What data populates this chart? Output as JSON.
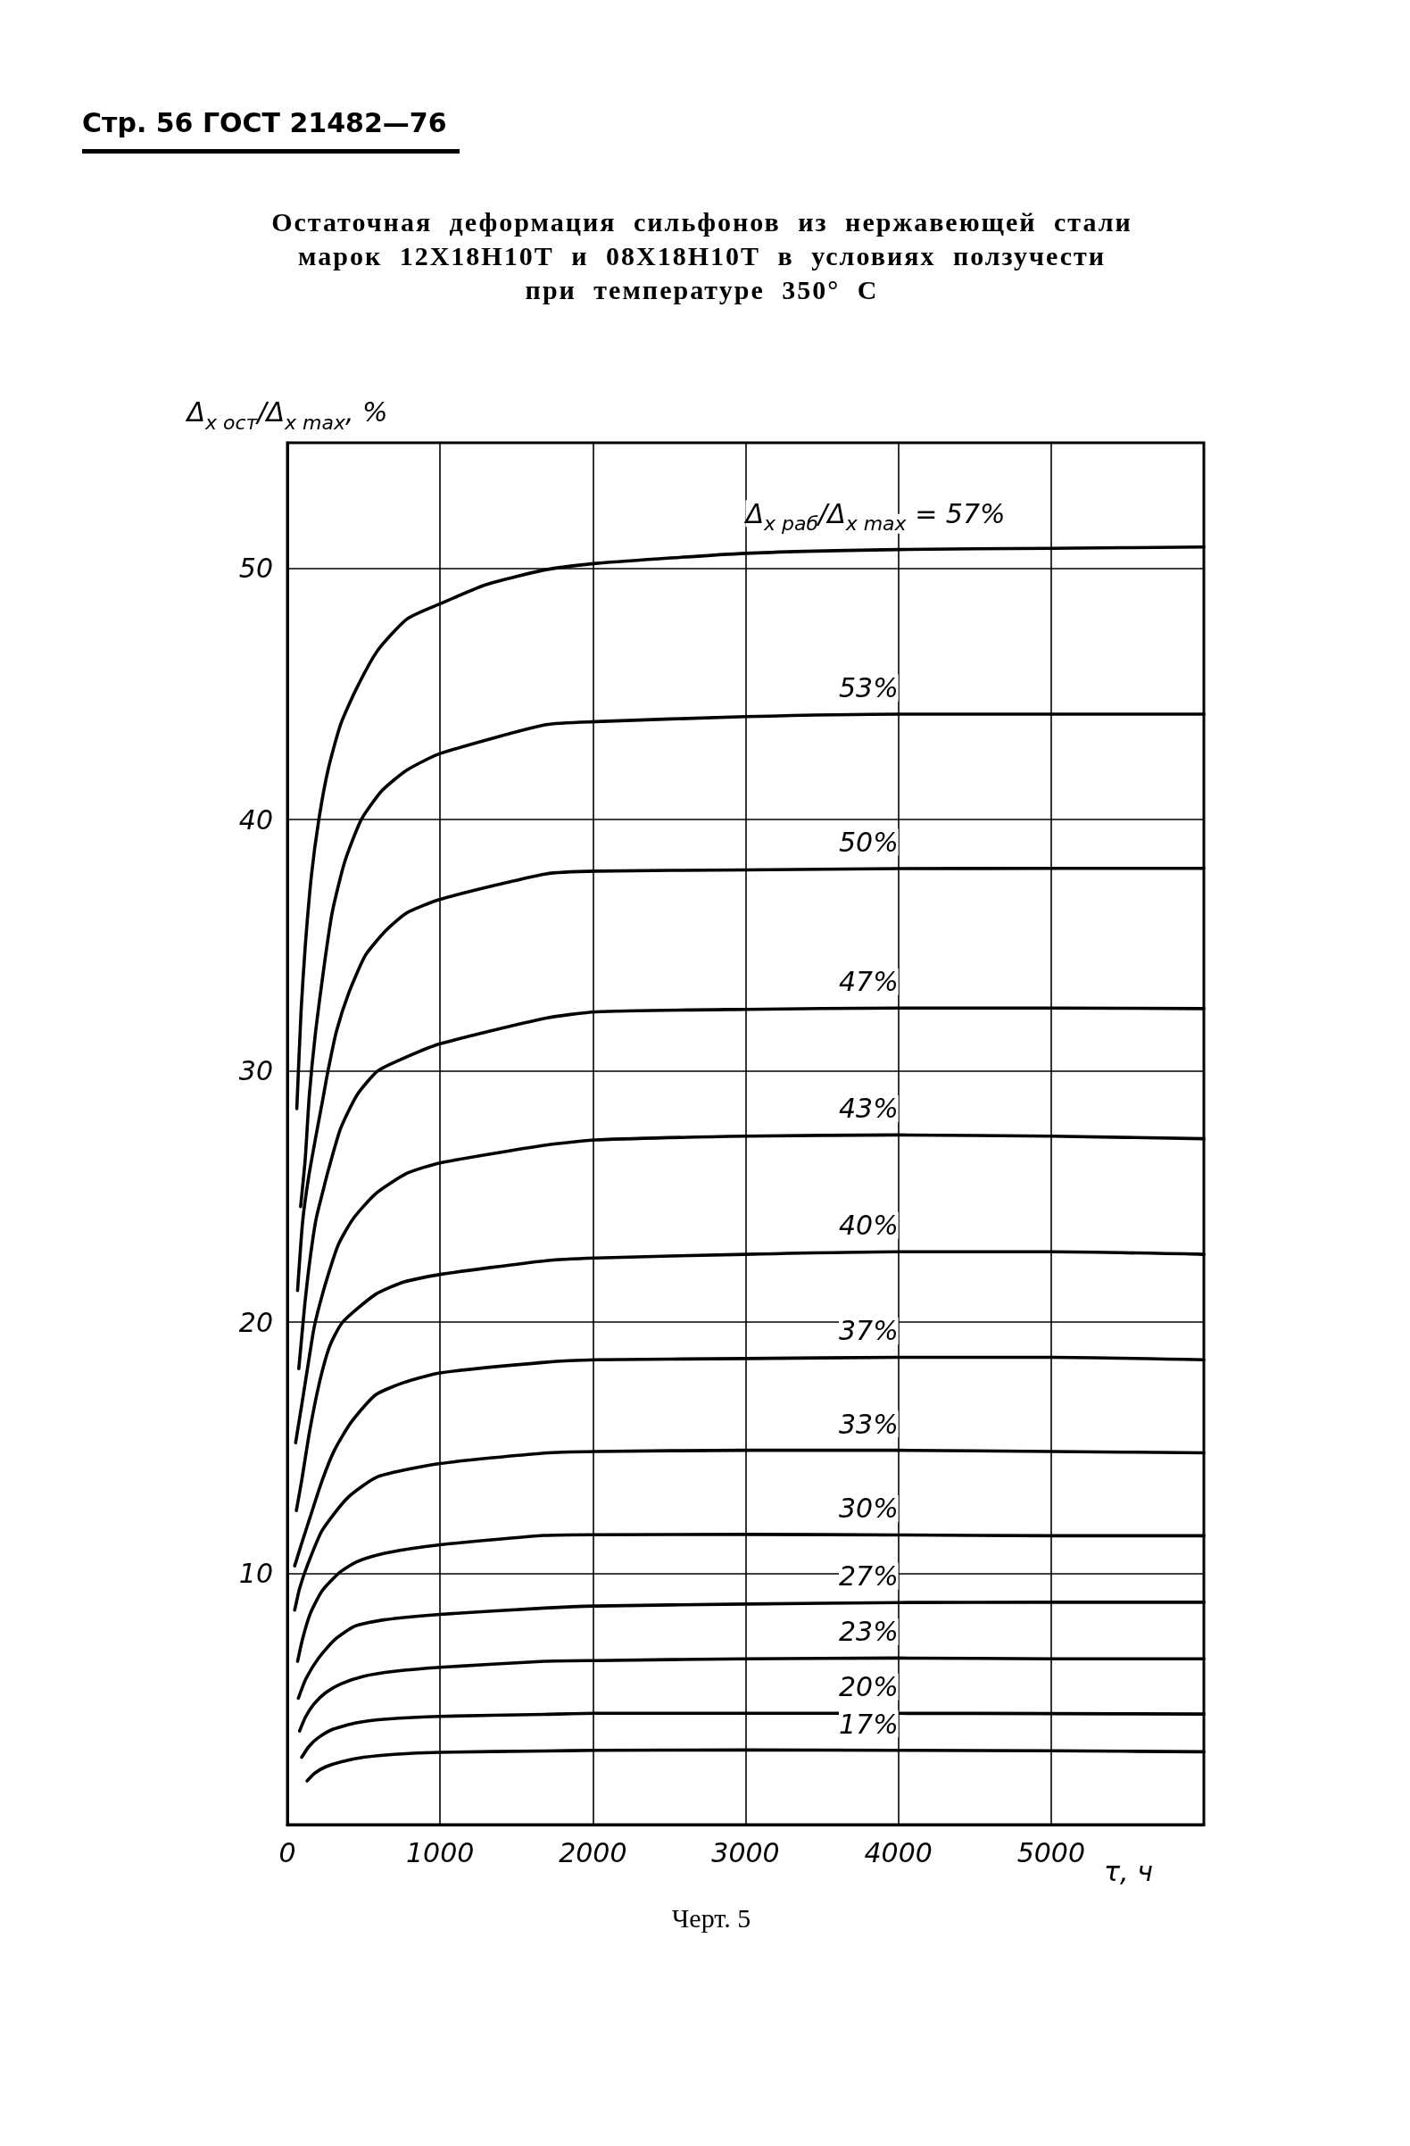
{
  "chart_data": {
    "type": "line",
    "title": "Остаточная деформация сильфонов из нержавеющей стали марок 12Х18Н10Т и 08Х18Н10Т в условиях ползучести при температуре 350° С",
    "annotations": [
      "Стр. 56 ГОСТ 21482—76",
      "Черт. 5"
    ],
    "xlabel": "τ, ч",
    "ylabel": "Δ$_{x ост}$/Δ$_{x max}$, %",
    "xlim": [
      0,
      6000
    ],
    "xticks": [
      0,
      1000,
      2000,
      3000,
      4000,
      5000
    ],
    "ylim": [
      0,
      55
    ],
    "yticks": [
      10,
      20,
      30,
      40,
      50
    ],
    "grid": true,
    "series": [
      {
        "name": "Δ$_{x раб}$/Δ$_{x max}$ = 57%",
        "color": "#000000",
        "x": [
          62,
          90,
          117,
          158,
          206,
          266,
          348,
          456,
          592,
          782,
          1000,
          1300,
          1693,
          2020,
          3000,
          4000,
          5000,
          6000
        ],
        "values": [
          28.5,
          32.4,
          34.95,
          37.8,
          40,
          41.97,
          43.78,
          45.26,
          46.74,
          47.98,
          48.59,
          49.35,
          49.95,
          50.2,
          50.6,
          50.75,
          50.8,
          50.85
        ]
      },
      {
        "name": "53%",
        "color": "#000000",
        "x": [
          87,
          117,
          144,
          185,
          239,
          293,
          375,
          484,
          619,
          782,
          1000,
          1693,
          2020,
          3000,
          4000,
          5000,
          6000
        ],
        "values": [
          24.6,
          26.5,
          29.04,
          31.57,
          34.1,
          36.29,
          38.31,
          40,
          41.15,
          41.97,
          42.63,
          43.78,
          43.9,
          44.1,
          44.2,
          44.2,
          44.2
        ]
      },
      {
        "name": "50%",
        "color": "#000000",
        "x": [
          67,
          100,
          140,
          190,
          230,
          266,
          321,
          402,
          511,
          647,
          782,
          1000,
          1693,
          2020,
          3000,
          4000,
          5000,
          6000
        ],
        "values": [
          21.26,
          24,
          25.8,
          27.5,
          28.8,
          30,
          31.57,
          33.1,
          34.6,
          35.6,
          36.29,
          36.83,
          37.84,
          37.95,
          38,
          38.05,
          38.06,
          38.06
        ]
      },
      {
        "name": "47%",
        "color": "#000000",
        "x": [
          75,
          94,
          115,
          147,
          188,
          239,
          266,
          348,
          456,
          592,
          782,
          1000,
          1693,
          2020,
          3000,
          4000,
          5000,
          6000
        ],
        "values": [
          18.15,
          19.4,
          20.76,
          22.44,
          24.1,
          25.36,
          26,
          27.7,
          29.04,
          30,
          30.56,
          31.08,
          32.1,
          32.35,
          32.45,
          32.5,
          32.5,
          32.48
        ]
      },
      {
        "name": "43%",
        "color": "#000000",
        "x": [
          54,
          94,
          134,
          174,
          214,
          268,
          335,
          429,
          576,
          782,
          1000,
          1693,
          2020,
          3000,
          4000,
          5000,
          6000
        ],
        "values": [
          15.2,
          16.7,
          18.24,
          19.75,
          20.76,
          21.9,
          23.1,
          24.1,
          25.1,
          25.92,
          26.34,
          27.05,
          27.25,
          27.4,
          27.45,
          27.4,
          27.3
        ]
      },
      {
        "name": "40%",
        "color": "#000000",
        "x": [
          59,
          94,
          147,
          214,
          281,
          362,
          576,
          764,
          1000,
          1684,
          2020,
          3000,
          4000,
          5000,
          6000
        ],
        "values": [
          12.5,
          13.7,
          15.7,
          17.7,
          19.1,
          20,
          21.1,
          21.6,
          21.9,
          22.44,
          22.55,
          22.7,
          22.8,
          22.8,
          22.7
        ]
      },
      {
        "name": "37%",
        "color": "#000000",
        "x": [
          48,
          94,
          147,
          228,
          308,
          416,
          576,
          764,
          1000,
          1684,
          2020,
          3000,
          4000,
          5000,
          6000
        ],
        "values": [
          10.3,
          11.2,
          12.2,
          13.7,
          14.9,
          16,
          17.1,
          17.6,
          17.98,
          18.4,
          18.5,
          18.55,
          18.6,
          18.6,
          18.5
        ]
      },
      {
        "name": "33%",
        "color": "#000000",
        "x": [
          48,
          80,
          130,
          227,
          393,
          593,
          1000,
          1684,
          2020,
          3000,
          4000,
          5000,
          6000
        ],
        "values": [
          8.54,
          9.4,
          10.3,
          11.7,
          13,
          13.85,
          14.37,
          14.79,
          14.85,
          14.9,
          14.9,
          14.85,
          14.8
        ]
      },
      {
        "name": "30%",
        "color": "#000000",
        "x": [
          67,
          100,
          150,
          227,
          335,
          450,
          600,
          800,
          1000,
          1684,
          2020,
          3000,
          4000,
          5000,
          6000
        ],
        "values": [
          6.5,
          7.4,
          8.4,
          9.3,
          10,
          10.45,
          10.75,
          10.98,
          11.14,
          11.51,
          11.54,
          11.55,
          11.53,
          11.5,
          11.5
        ]
      },
      {
        "name": "27%",
        "color": "#000000",
        "x": [
          72,
          121,
          201,
          308,
          442,
          630,
          1000,
          1684,
          2020,
          3000,
          4000,
          5000,
          6000
        ],
        "values": [
          5.03,
          5.8,
          6.6,
          7.35,
          7.9,
          8.15,
          8.37,
          8.62,
          8.7,
          8.78,
          8.84,
          8.85,
          8.85
        ]
      },
      {
        "name": "23%",
        "color": "#000000",
        "x": [
          80,
          120,
          174,
          250,
          350,
          496,
          700,
          1000,
          1684,
          2020,
          3000,
          4000,
          5000,
          6000
        ],
        "values": [
          3.73,
          4.3,
          4.8,
          5.25,
          5.6,
          5.9,
          6.1,
          6.26,
          6.5,
          6.53,
          6.6,
          6.63,
          6.6,
          6.6
        ]
      },
      {
        "name": "20%",
        "color": "#000000",
        "x": [
          94,
          140,
          200,
          300,
          450,
          650,
          1000,
          1684,
          2020,
          3000,
          4000,
          5000,
          6000
        ],
        "values": [
          2.68,
          3.1,
          3.45,
          3.8,
          4.05,
          4.2,
          4.31,
          4.39,
          4.43,
          4.43,
          4.43,
          4.42,
          4.4
        ]
      },
      {
        "name": "17%",
        "color": "#000000",
        "x": [
          129,
          180,
          250,
          350,
          500,
          700,
          1000,
          1684,
          2020,
          3000,
          4000,
          5000,
          6000
        ],
        "values": [
          1.74,
          2.05,
          2.3,
          2.5,
          2.68,
          2.8,
          2.88,
          2.93,
          2.96,
          2.97,
          2.96,
          2.94,
          2.9
        ]
      }
    ]
  }
}
